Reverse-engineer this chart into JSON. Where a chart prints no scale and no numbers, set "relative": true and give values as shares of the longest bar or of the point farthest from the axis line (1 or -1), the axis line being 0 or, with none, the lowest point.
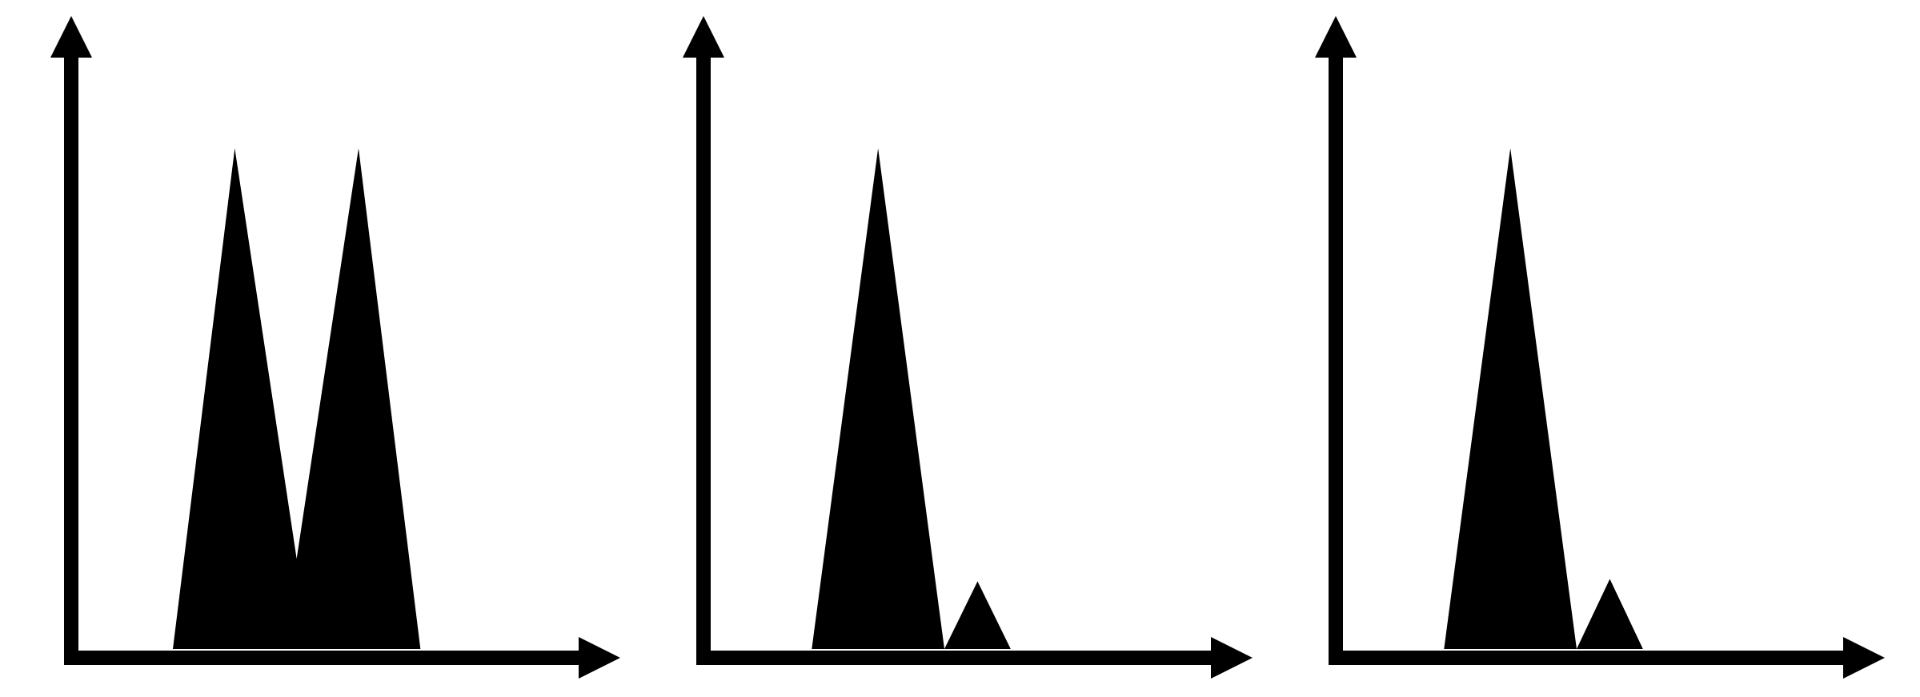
{
  "chart_data": [
    {
      "type": "area",
      "relative": true,
      "categories": [
        null,
        null,
        null,
        null,
        null,
        null,
        null,
        null,
        null,
        null,
        null,
        null,
        null,
        null,
        null,
        null
      ],
      "values": [
        0,
        0,
        0,
        0,
        0.5,
        1,
        0.59,
        0.18,
        0.59,
        1,
        0.5,
        0,
        0,
        0,
        0,
        0
      ],
      "color": "#000000",
      "marker": "none"
    },
    {
      "type": "area",
      "relative": true,
      "categories": [
        null,
        null,
        null,
        null,
        null,
        null,
        null,
        null,
        null,
        null,
        null,
        null,
        null,
        null,
        null
      ],
      "values": [
        0,
        0,
        0,
        0,
        0.5,
        1,
        0.5,
        0,
        0.135,
        0,
        0,
        0,
        0,
        0,
        0
      ],
      "color": "#000000",
      "marker": "none"
    },
    {
      "type": "area",
      "relative": true,
      "categories": [
        null,
        null,
        null,
        null,
        null,
        null,
        null,
        null,
        null,
        null,
        null,
        null,
        null,
        null,
        null
      ],
      "values": [
        0,
        0,
        0,
        0,
        0.5,
        1,
        0.5,
        0,
        0.14,
        0,
        0,
        0,
        0,
        0,
        0
      ],
      "color": "#000000",
      "marker": "none"
    }
  ]
}
